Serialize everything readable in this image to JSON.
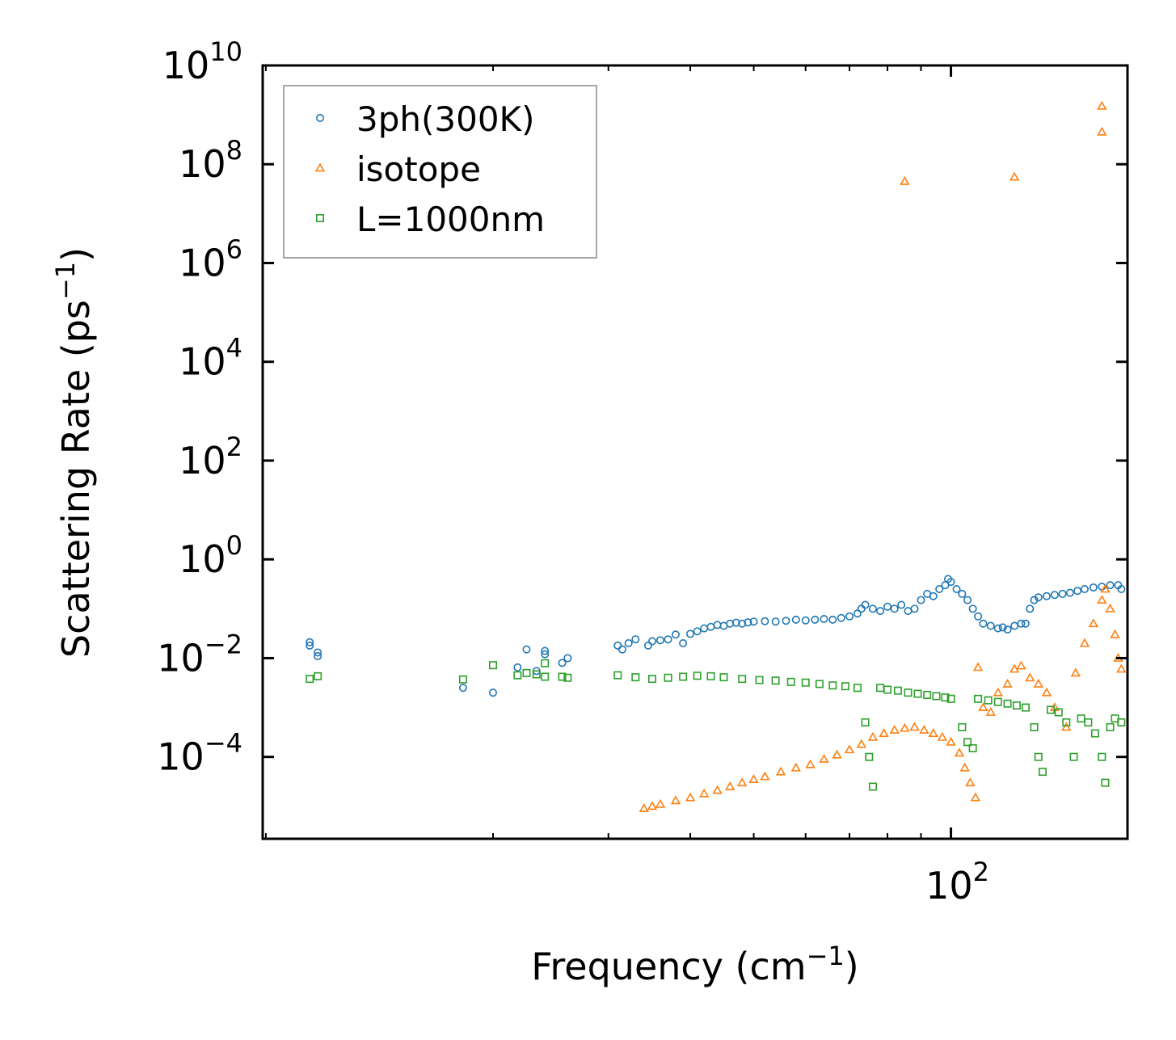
{
  "chart_data": {
    "type": "scatter",
    "xscale": "log",
    "yscale": "log",
    "xlabel": {
      "text": "Frequency (cm",
      "sup": "−1",
      "tail": ")"
    },
    "ylabel": {
      "text": "Scattering Rate (ps",
      "sup": "−1",
      "tail": ")"
    },
    "xlim": [
      8.9,
      186
    ],
    "ylim": [
      2.2e-06,
      10000000000.0
    ],
    "x_major_ticks": [
      {
        "value": 100,
        "base": "10",
        "exp": "2"
      }
    ],
    "y_major_ticks": [
      {
        "value": 0.0001,
        "base": "10",
        "exp": "−4"
      },
      {
        "value": 0.01,
        "base": "10",
        "exp": "−2"
      },
      {
        "value": 1,
        "base": "10",
        "exp": "0"
      },
      {
        "value": 100,
        "base": "10",
        "exp": "2"
      },
      {
        "value": 10000,
        "base": "10",
        "exp": "4"
      },
      {
        "value": 1000000,
        "base": "10",
        "exp": "6"
      },
      {
        "value": 100000000,
        "base": "10",
        "exp": "8"
      },
      {
        "value": 10000000000,
        "base": "10",
        "exp": "10"
      }
    ],
    "legend_position": "upper-left",
    "series": [
      {
        "name": "3ph(300K)",
        "marker": "circle",
        "color": "#1f77b4",
        "points": [
          [
            10.5,
            0.021
          ],
          [
            10.5,
            0.018
          ],
          [
            10.8,
            0.013
          ],
          [
            10.8,
            0.011
          ],
          [
            18,
            0.0025
          ],
          [
            20,
            0.002
          ],
          [
            21.8,
            0.0065
          ],
          [
            22.5,
            0.015
          ],
          [
            23.3,
            0.0055
          ],
          [
            24,
            0.012
          ],
          [
            24,
            0.014
          ],
          [
            25.5,
            0.008
          ],
          [
            26,
            0.01
          ],
          [
            31,
            0.018
          ],
          [
            31.5,
            0.015
          ],
          [
            32.2,
            0.02
          ],
          [
            33,
            0.024
          ],
          [
            34.5,
            0.018
          ],
          [
            35,
            0.022
          ],
          [
            36,
            0.023
          ],
          [
            37,
            0.024
          ],
          [
            38,
            0.03
          ],
          [
            39,
            0.02
          ],
          [
            40,
            0.031
          ],
          [
            41,
            0.035
          ],
          [
            42,
            0.04
          ],
          [
            43,
            0.043
          ],
          [
            44,
            0.047
          ],
          [
            45,
            0.045
          ],
          [
            46,
            0.05
          ],
          [
            47,
            0.052
          ],
          [
            48,
            0.05
          ],
          [
            49,
            0.053
          ],
          [
            50,
            0.055
          ],
          [
            52,
            0.056
          ],
          [
            54,
            0.055
          ],
          [
            56,
            0.057
          ],
          [
            58,
            0.06
          ],
          [
            60,
            0.058
          ],
          [
            62,
            0.06
          ],
          [
            64,
            0.062
          ],
          [
            66,
            0.06
          ],
          [
            68,
            0.065
          ],
          [
            70,
            0.07
          ],
          [
            72,
            0.08
          ],
          [
            73,
            0.1
          ],
          [
            74,
            0.12
          ],
          [
            76,
            0.1
          ],
          [
            78,
            0.09
          ],
          [
            80,
            0.11
          ],
          [
            82,
            0.1
          ],
          [
            84,
            0.12
          ],
          [
            86,
            0.09
          ],
          [
            88,
            0.1
          ],
          [
            90,
            0.15
          ],
          [
            92,
            0.2
          ],
          [
            94,
            0.18
          ],
          [
            96,
            0.25
          ],
          [
            98,
            0.3
          ],
          [
            99,
            0.4
          ],
          [
            100,
            0.35
          ],
          [
            102,
            0.25
          ],
          [
            104,
            0.2
          ],
          [
            106,
            0.15
          ],
          [
            108,
            0.1
          ],
          [
            110,
            0.07
          ],
          [
            112,
            0.05
          ],
          [
            115,
            0.045
          ],
          [
            118,
            0.04
          ],
          [
            120,
            0.042
          ],
          [
            122,
            0.038
          ],
          [
            125,
            0.045
          ],
          [
            128,
            0.05
          ],
          [
            130,
            0.05
          ],
          [
            132,
            0.1
          ],
          [
            134,
            0.15
          ],
          [
            136,
            0.17
          ],
          [
            140,
            0.18
          ],
          [
            144,
            0.19
          ],
          [
            148,
            0.2
          ],
          [
            152,
            0.21
          ],
          [
            156,
            0.23
          ],
          [
            160,
            0.25
          ],
          [
            165,
            0.27
          ],
          [
            170,
            0.28
          ],
          [
            175,
            0.3
          ],
          [
            180,
            0.3
          ],
          [
            182,
            0.25
          ]
        ]
      },
      {
        "name": "isotope",
        "marker": "triangle",
        "color": "#ff7f0e",
        "points": [
          [
            34,
            9e-06
          ],
          [
            35,
            1e-05
          ],
          [
            36,
            1.1e-05
          ],
          [
            38,
            1.3e-05
          ],
          [
            40,
            1.5e-05
          ],
          [
            42,
            1.8e-05
          ],
          [
            44,
            2.1e-05
          ],
          [
            46,
            2.5e-05
          ],
          [
            48,
            3e-05
          ],
          [
            50,
            3.5e-05
          ],
          [
            52,
            4e-05
          ],
          [
            55,
            5e-05
          ],
          [
            58,
            6e-05
          ],
          [
            61,
            7e-05
          ],
          [
            64,
            9e-05
          ],
          [
            67,
            0.00011
          ],
          [
            70,
            0.00014
          ],
          [
            73,
            0.00018
          ],
          [
            76,
            0.00025
          ],
          [
            79,
            0.0003
          ],
          [
            82,
            0.00035
          ],
          [
            85,
            0.00038
          ],
          [
            88,
            0.0004
          ],
          [
            91,
            0.00035
          ],
          [
            94,
            0.0003
          ],
          [
            97,
            0.00025
          ],
          [
            100,
            0.0002
          ],
          [
            103,
            0.00012
          ],
          [
            105,
            6e-05
          ],
          [
            107,
            3e-05
          ],
          [
            109,
            1.5e-05
          ],
          [
            110,
            0.0065
          ],
          [
            112,
            0.001
          ],
          [
            115,
            0.0008
          ],
          [
            118,
            0.002
          ],
          [
            122,
            0.003
          ],
          [
            125,
            0.006
          ],
          [
            128,
            0.007
          ],
          [
            132,
            0.004
          ],
          [
            136,
            0.003
          ],
          [
            140,
            0.002
          ],
          [
            144,
            0.001
          ],
          [
            150,
            0.0004
          ],
          [
            155,
            0.005
          ],
          [
            160,
            0.02
          ],
          [
            165,
            0.05
          ],
          [
            170,
            0.15
          ],
          [
            172,
            0.25
          ],
          [
            175,
            0.1
          ],
          [
            178,
            0.03
          ],
          [
            180,
            0.01
          ],
          [
            182,
            0.006
          ],
          [
            85,
            45000000
          ],
          [
            125,
            55000000
          ],
          [
            170,
            1500000000
          ],
          [
            170,
            450000000
          ]
        ]
      },
      {
        "name": "L=1000nm",
        "marker": "square",
        "color": "#2ca02c",
        "points": [
          [
            10.5,
            0.0038
          ],
          [
            10.8,
            0.0043
          ],
          [
            18,
            0.0037
          ],
          [
            20,
            0.0072
          ],
          [
            21.8,
            0.0045
          ],
          [
            22.5,
            0.005
          ],
          [
            23.3,
            0.0047
          ],
          [
            24,
            0.0042
          ],
          [
            24,
            0.0079
          ],
          [
            25.5,
            0.0042
          ],
          [
            26,
            0.004
          ],
          [
            31,
            0.0045
          ],
          [
            33,
            0.0041
          ],
          [
            35,
            0.0038
          ],
          [
            37,
            0.004
          ],
          [
            39,
            0.0042
          ],
          [
            41,
            0.0044
          ],
          [
            43,
            0.0043
          ],
          [
            45,
            0.0041
          ],
          [
            48,
            0.0038
          ],
          [
            51,
            0.0036
          ],
          [
            54,
            0.0035
          ],
          [
            57,
            0.0033
          ],
          [
            60,
            0.0032
          ],
          [
            63,
            0.003
          ],
          [
            66,
            0.0028
          ],
          [
            69,
            0.0027
          ],
          [
            72,
            0.0025
          ],
          [
            74,
            0.0005
          ],
          [
            75,
            0.0001
          ],
          [
            76,
            2.5e-05
          ],
          [
            78,
            0.0025
          ],
          [
            80,
            0.0023
          ],
          [
            83,
            0.0022
          ],
          [
            86,
            0.002
          ],
          [
            89,
            0.0019
          ],
          [
            92,
            0.0018
          ],
          [
            95,
            0.0017
          ],
          [
            98,
            0.0016
          ],
          [
            100,
            0.0015
          ],
          [
            104,
            0.0004
          ],
          [
            106,
            0.0002
          ],
          [
            108,
            0.00015
          ],
          [
            110,
            0.0015
          ],
          [
            114,
            0.0014
          ],
          [
            118,
            0.0013
          ],
          [
            122,
            0.0012
          ],
          [
            126,
            0.0011
          ],
          [
            130,
            0.001
          ],
          [
            134,
            0.0004
          ],
          [
            136,
            0.0001
          ],
          [
            138,
            5e-05
          ],
          [
            142,
            0.0009
          ],
          [
            146,
            0.0008
          ],
          [
            150,
            0.0005
          ],
          [
            154,
            0.0001
          ],
          [
            158,
            0.0006
          ],
          [
            162,
            0.0005
          ],
          [
            166,
            0.0003
          ],
          [
            170,
            0.0001
          ],
          [
            172,
            3e-05
          ],
          [
            175,
            0.0004
          ],
          [
            178,
            0.0006
          ],
          [
            182,
            0.0005
          ]
        ]
      }
    ]
  }
}
